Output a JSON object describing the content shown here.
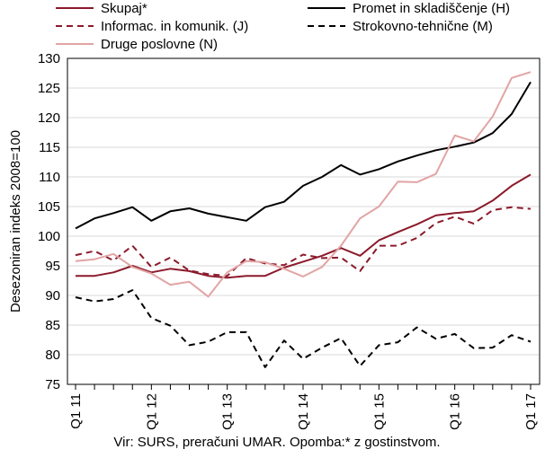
{
  "chart_data": {
    "type": "line",
    "ylabel": "Desezoniran indeks 2008=100",
    "ylim": [
      75,
      130
    ],
    "yticks": [
      75,
      80,
      85,
      90,
      95,
      100,
      105,
      110,
      115,
      120,
      125,
      130
    ],
    "categories": [
      "Q1 11",
      "Q2 11",
      "Q3 11",
      "Q4 11",
      "Q1 12",
      "Q2 12",
      "Q3 12",
      "Q4 12",
      "Q1 13",
      "Q2 13",
      "Q3 13",
      "Q4 13",
      "Q1 14",
      "Q2 14",
      "Q3 14",
      "Q4 14",
      "Q1 15",
      "Q2 15",
      "Q3 15",
      "Q4 15",
      "Q1 16",
      "Q2 16",
      "Q3 16",
      "Q4 16",
      "Q1 17"
    ],
    "xtick_labels": [
      "Q1 11",
      "Q1 12",
      "Q1 13",
      "Q1 14",
      "Q1 15",
      "Q1 16",
      "Q1 17"
    ],
    "grid": "horizontal",
    "legend_position": "top",
    "series": [
      {
        "name": "Skupaj*",
        "color": "#8b1a2b",
        "dash": "solid",
        "values": [
          93.3,
          93.3,
          93.9,
          95.0,
          93.9,
          94.5,
          94.1,
          93.3,
          93.0,
          93.3,
          93.3,
          94.7,
          95.7,
          96.7,
          98.0,
          96.7,
          99.3,
          100.7,
          102.0,
          103.5,
          103.9,
          104.2,
          106.0,
          108.5,
          110.4
        ]
      },
      {
        "name": "Promet in skladiščenje (H)",
        "color": "#000000",
        "dash": "solid",
        "values": [
          101.3,
          103.0,
          103.9,
          104.9,
          102.6,
          104.2,
          104.7,
          103.8,
          103.2,
          102.6,
          104.9,
          105.8,
          108.5,
          110.0,
          112.0,
          110.4,
          111.3,
          112.6,
          113.6,
          114.5,
          115.1,
          115.8,
          117.4,
          120.6,
          126.0
        ]
      },
      {
        "name": "Informac. in komunik. (J)",
        "color": "#8b1a2b",
        "dash": "dashed",
        "values": [
          96.8,
          97.5,
          95.9,
          98.4,
          94.8,
          96.4,
          94.2,
          93.6,
          93.3,
          96.3,
          95.4,
          95.1,
          96.9,
          96.3,
          96.4,
          94.1,
          98.4,
          98.4,
          99.7,
          102.2,
          103.3,
          102.1,
          104.4,
          104.9,
          104.6
        ]
      },
      {
        "name": "Strokovno-tehnične (M)",
        "color": "#000000",
        "dash": "dashed",
        "values": [
          89.7,
          89.0,
          89.4,
          90.9,
          86.2,
          84.9,
          81.6,
          82.2,
          83.8,
          83.8,
          77.9,
          82.4,
          79.3,
          81.2,
          82.8,
          78.1,
          81.6,
          82.1,
          84.6,
          82.7,
          83.5,
          81.1,
          81.2,
          83.3,
          82.2
        ]
      },
      {
        "name": "Druge poslovne (N)",
        "color": "#e2a4a4",
        "dash": "solid",
        "values": [
          95.8,
          96.1,
          97.0,
          94.8,
          93.7,
          91.8,
          92.3,
          89.8,
          93.9,
          95.8,
          95.6,
          94.5,
          93.2,
          94.8,
          98.4,
          103.0,
          105.0,
          109.2,
          109.1,
          110.5,
          117.0,
          116.0,
          120.2,
          126.7,
          127.7
        ]
      }
    ]
  },
  "footnote": "Vir: SURS, preračuni UMAR. Opomba:* z gostinstvom."
}
